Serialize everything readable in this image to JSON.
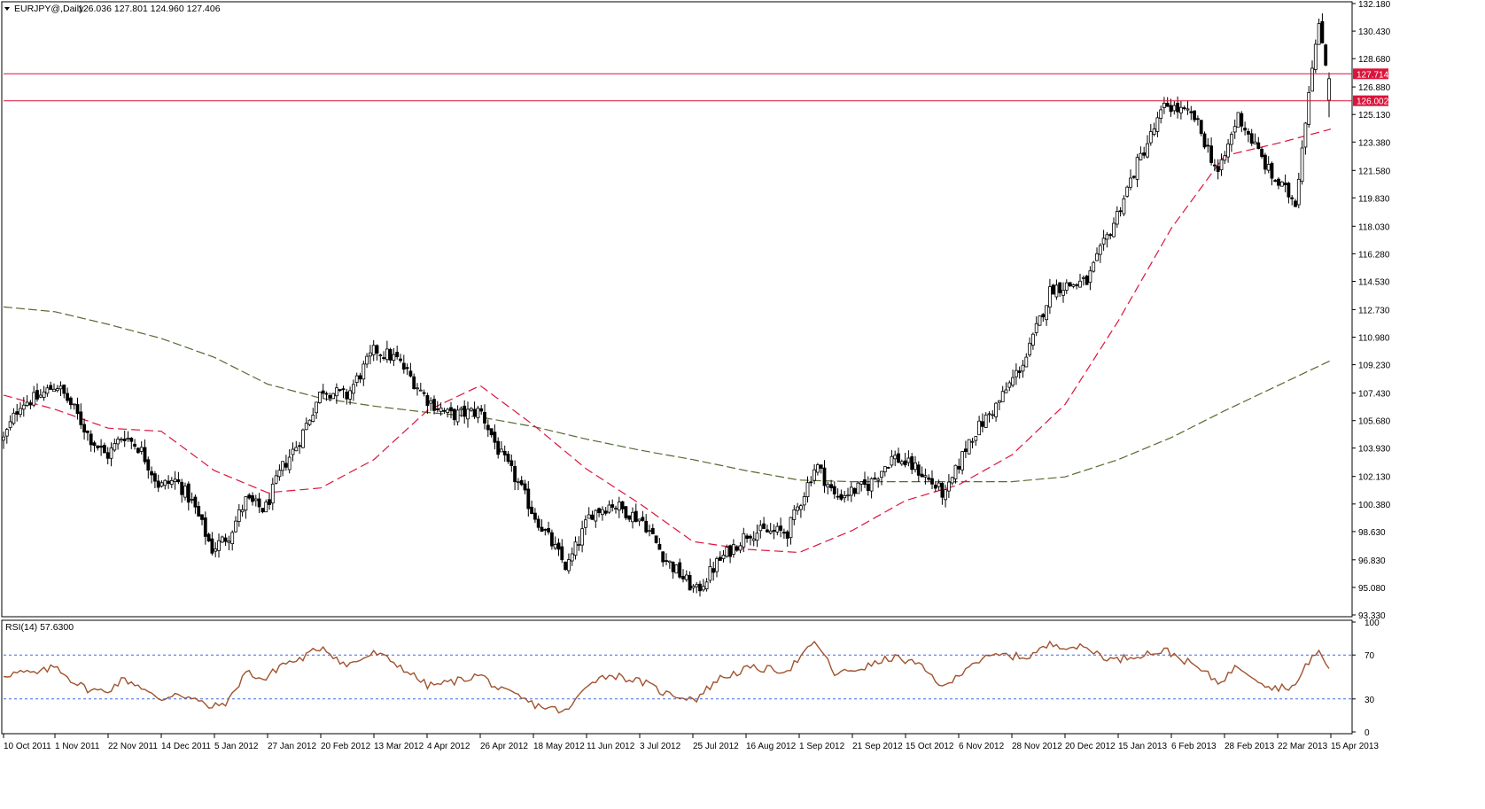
{
  "header": {
    "symbol": "EURJPY@,Daily",
    "ohlc": "126.036 127.801 124.960 127.406"
  },
  "rsi_header": "RSI(14) 57.6300",
  "colors": {
    "up_candle": "#ffffff",
    "down_candle": "#000000",
    "candle_outline": "#000000",
    "ma50": "#dc143c",
    "ma200": "#556b2f",
    "resistance_line": "#dc143c",
    "rsi_line": "#a0522d",
    "rsi_levels": "#4169e1",
    "tag_fill": "#dc143c"
  },
  "chart_data": [
    {
      "type": "candlestick",
      "symbol": "EURJPY",
      "timeframe": "Daily",
      "title": "EURJPY@,Daily",
      "last_ohlc": {
        "open": 126.036,
        "high": 127.801,
        "low": 124.96,
        "close": 127.406
      },
      "ylim": [
        93.33,
        132.18
      ],
      "y_ticks": [
        "93.330",
        "95.080",
        "96.830",
        "98.630",
        "100.380",
        "102.130",
        "103.930",
        "105.680",
        "107.430",
        "109.230",
        "110.980",
        "112.730",
        "114.530",
        "116.280",
        "118.030",
        "119.830",
        "121.580",
        "123.380",
        "125.130",
        "126.880",
        "128.680",
        "130.430",
        "132.180"
      ],
      "x_ticks": [
        "10 Oct 2011",
        "1 Nov 2011",
        "22 Nov 2011",
        "14 Dec 2011",
        "5 Jan 2012",
        "27 Jan 2012",
        "20 Feb 2012",
        "13 Mar 2012",
        "4 Apr 2012",
        "26 Apr 2012",
        "18 May 2012",
        "11 Jun 2012",
        "3 Jul 2012",
        "25 Jul 2012",
        "16 Aug 2012",
        "1 Sep 2012",
        "21 Sep 2012",
        "15 Oct 2012",
        "6 Nov 2012",
        "28 Nov 2012",
        "20 Dec 2012",
        "15 Jan 2013",
        "6 Feb 2013",
        "28 Feb 2013",
        "22 Mar 2013",
        "15 Apr 2013"
      ],
      "close_path": [
        {
          "date": "10 Oct 2011",
          "close": 104.5
        },
        {
          "date": "17 Oct 2011",
          "close": 106.8
        },
        {
          "date": "24 Oct 2011",
          "close": 107.1
        },
        {
          "date": "1 Nov 2011",
          "close": 108.0
        },
        {
          "date": "8 Nov 2011",
          "close": 106.5
        },
        {
          "date": "15 Nov 2011",
          "close": 104.6
        },
        {
          "date": "22 Nov 2011",
          "close": 103.4
        },
        {
          "date": "29 Nov 2011",
          "close": 104.8
        },
        {
          "date": "6 Dec 2011",
          "close": 103.9
        },
        {
          "date": "14 Dec 2011",
          "close": 101.5
        },
        {
          "date": "21 Dec 2011",
          "close": 101.9
        },
        {
          "date": "28 Dec 2011",
          "close": 100.4
        },
        {
          "date": "5 Jan 2012",
          "close": 97.5
        },
        {
          "date": "12 Jan 2012",
          "close": 98.4
        },
        {
          "date": "19 Jan 2012",
          "close": 100.6
        },
        {
          "date": "27 Jan 2012",
          "close": 100.0
        },
        {
          "date": "3 Feb 2012",
          "close": 102.6
        },
        {
          "date": "10 Feb 2012",
          "close": 104.3
        },
        {
          "date": "20 Feb 2012",
          "close": 107.7
        },
        {
          "date": "1 Mar 2012",
          "close": 107.2
        },
        {
          "date": "13 Mar 2012",
          "close": 110.2
        },
        {
          "date": "22 Mar 2012",
          "close": 109.6
        },
        {
          "date": "4 Apr 2012",
          "close": 107.0
        },
        {
          "date": "13 Apr 2012",
          "close": 106.0
        },
        {
          "date": "26 Apr 2012",
          "close": 106.3
        },
        {
          "date": "4 May 2012",
          "close": 103.6
        },
        {
          "date": "11 May 2012",
          "close": 101.9
        },
        {
          "date": "18 May 2012",
          "close": 99.8
        },
        {
          "date": "1 Jun 2012",
          "close": 96.3
        },
        {
          "date": "11 Jun 2012",
          "close": 99.8
        },
        {
          "date": "20 Jun 2012",
          "close": 100.4
        },
        {
          "date": "3 Jul 2012",
          "close": 99.3
        },
        {
          "date": "12 Jul 2012",
          "close": 96.9
        },
        {
          "date": "25 Jul 2012",
          "close": 94.8
        },
        {
          "date": "3 Aug 2012",
          "close": 96.7
        },
        {
          "date": "16 Aug 2012",
          "close": 98.6
        },
        {
          "date": "1 Sep 2012",
          "close": 98.6
        },
        {
          "date": "13 Sep 2012",
          "close": 102.9
        },
        {
          "date": "21 Sep 2012",
          "close": 100.8
        },
        {
          "date": "5 Oct 2012",
          "close": 101.6
        },
        {
          "date": "15 Oct 2012",
          "close": 103.4
        },
        {
          "date": "25 Oct 2012",
          "close": 102.6
        },
        {
          "date": "6 Nov 2012",
          "close": 100.9
        },
        {
          "date": "16 Nov 2012",
          "close": 104.5
        },
        {
          "date": "28 Nov 2012",
          "close": 106.8
        },
        {
          "date": "10 Dec 2012",
          "close": 109.8
        },
        {
          "date": "20 Dec 2012",
          "close": 114.1
        },
        {
          "date": "4 Jan 2013",
          "close": 114.5
        },
        {
          "date": "15 Jan 2013",
          "close": 118.2
        },
        {
          "date": "25 Jan 2013",
          "close": 122.0
        },
        {
          "date": "6 Feb 2013",
          "close": 125.8
        },
        {
          "date": "18 Feb 2013",
          "close": 124.9
        },
        {
          "date": "28 Feb 2013",
          "close": 121.3
        },
        {
          "date": "8 Mar 2013",
          "close": 125.1
        },
        {
          "date": "22 Mar 2013",
          "close": 121.2
        },
        {
          "date": "1 Apr 2013",
          "close": 119.6
        },
        {
          "date": "8 Apr 2013",
          "close": 128.5
        },
        {
          "date": "11 Apr 2013",
          "close": 130.7
        },
        {
          "date": "15 Apr 2013",
          "close": 127.406
        }
      ],
      "overlays": [
        {
          "kind": "moving-average-50",
          "values_by_date": [
            {
              "date": "10 Oct 2011",
              "value": 107.3
            },
            {
              "date": "1 Nov 2011",
              "value": 106.4
            },
            {
              "date": "22 Nov 2011",
              "value": 105.2
            },
            {
              "date": "14 Dec 2011",
              "value": 105.0
            },
            {
              "date": "5 Jan 2012",
              "value": 102.5
            },
            {
              "date": "27 Jan 2012",
              "value": 101.1
            },
            {
              "date": "20 Feb 2012",
              "value": 101.4
            },
            {
              "date": "13 Mar 2012",
              "value": 103.2
            },
            {
              "date": "4 Apr 2012",
              "value": 106.3
            },
            {
              "date": "26 Apr 2012",
              "value": 107.9
            },
            {
              "date": "18 May 2012",
              "value": 105.4
            },
            {
              "date": "11 Jun 2012",
              "value": 102.6
            },
            {
              "date": "3 Jul 2012",
              "value": 100.4
            },
            {
              "date": "25 Jul 2012",
              "value": 98.0
            },
            {
              "date": "16 Aug 2012",
              "value": 97.5
            },
            {
              "date": "1 Sep 2012",
              "value": 97.3
            },
            {
              "date": "21 Sep 2012",
              "value": 98.7
            },
            {
              "date": "15 Oct 2012",
              "value": 100.6
            },
            {
              "date": "6 Nov 2012",
              "value": 101.6
            },
            {
              "date": "28 Nov 2012",
              "value": 103.5
            },
            {
              "date": "20 Dec 2012",
              "value": 106.7
            },
            {
              "date": "15 Jan 2013",
              "value": 112.0
            },
            {
              "date": "6 Feb 2013",
              "value": 117.9
            },
            {
              "date": "28 Feb 2013",
              "value": 122.5
            },
            {
              "date": "22 Mar 2013",
              "value": 123.3
            },
            {
              "date": "15 Apr 2013",
              "value": 124.2
            }
          ]
        },
        {
          "kind": "moving-average-200",
          "values_by_date": [
            {
              "date": "10 Oct 2011",
              "value": 112.9
            },
            {
              "date": "1 Nov 2011",
              "value": 112.6
            },
            {
              "date": "22 Nov 2011",
              "value": 111.8
            },
            {
              "date": "14 Dec 2011",
              "value": 110.9
            },
            {
              "date": "5 Jan 2012",
              "value": 109.7
            },
            {
              "date": "27 Jan 2012",
              "value": 108.0
            },
            {
              "date": "20 Feb 2012",
              "value": 107.1
            },
            {
              "date": "13 Mar 2012",
              "value": 106.6
            },
            {
              "date": "4 Apr 2012",
              "value": 106.2
            },
            {
              "date": "26 Apr 2012",
              "value": 105.9
            },
            {
              "date": "18 May 2012",
              "value": 105.3
            },
            {
              "date": "11 Jun 2012",
              "value": 104.5
            },
            {
              "date": "3 Jul 2012",
              "value": 103.8
            },
            {
              "date": "25 Jul 2012",
              "value": 103.2
            },
            {
              "date": "16 Aug 2012",
              "value": 102.5
            },
            {
              "date": "1 Sep 2012",
              "value": 101.9
            },
            {
              "date": "21 Sep 2012",
              "value": 101.8
            },
            {
              "date": "15 Oct 2012",
              "value": 101.8
            },
            {
              "date": "6 Nov 2012",
              "value": 101.8
            },
            {
              "date": "28 Nov 2012",
              "value": 101.8
            },
            {
              "date": "20 Dec 2012",
              "value": 102.1
            },
            {
              "date": "15 Jan 2013",
              "value": 103.2
            },
            {
              "date": "6 Feb 2013",
              "value": 104.6
            },
            {
              "date": "28 Feb 2013",
              "value": 106.3
            },
            {
              "date": "22 Mar 2013",
              "value": 107.9
            },
            {
              "date": "15 Apr 2013",
              "value": 109.5
            }
          ]
        }
      ],
      "horizontal_levels": [
        {
          "value": 127.714,
          "label": "127.714"
        },
        {
          "value": 126.002,
          "label": "126.002"
        }
      ],
      "grid": false
    },
    {
      "type": "line",
      "title": "RSI(14) 57.6300",
      "ylim": [
        0,
        100
      ],
      "y_ticks": [
        "100",
        "70",
        "30",
        "0"
      ],
      "levels": [
        70,
        30
      ],
      "series": [
        {
          "values": [
            {
              "date": "10 Oct 2011",
              "value": 52
            },
            {
              "date": "17 Oct 2011",
              "value": 54
            },
            {
              "date": "24 Oct 2011",
              "value": 53
            },
            {
              "date": "1 Nov 2011",
              "value": 60
            },
            {
              "date": "8 Nov 2011",
              "value": 46
            },
            {
              "date": "15 Nov 2011",
              "value": 38
            },
            {
              "date": "22 Nov 2011",
              "value": 37
            },
            {
              "date": "29 Nov 2011",
              "value": 48
            },
            {
              "date": "6 Dec 2011",
              "value": 42
            },
            {
              "date": "14 Dec 2011",
              "value": 28
            },
            {
              "date": "21 Dec 2011",
              "value": 36
            },
            {
              "date": "28 Dec 2011",
              "value": 30
            },
            {
              "date": "5 Jan 2012",
              "value": 22
            },
            {
              "date": "12 Jan 2012",
              "value": 28
            },
            {
              "date": "19 Jan 2012",
              "value": 55
            },
            {
              "date": "27 Jan 2012",
              "value": 47
            },
            {
              "date": "3 Feb 2012",
              "value": 62
            },
            {
              "date": "10 Feb 2012",
              "value": 65
            },
            {
              "date": "20 Feb 2012",
              "value": 78
            },
            {
              "date": "1 Mar 2012",
              "value": 60
            },
            {
              "date": "13 Mar 2012",
              "value": 72
            },
            {
              "date": "22 Mar 2012",
              "value": 62
            },
            {
              "date": "4 Apr 2012",
              "value": 42
            },
            {
              "date": "13 Apr 2012",
              "value": 45
            },
            {
              "date": "26 Apr 2012",
              "value": 52
            },
            {
              "date": "4 May 2012",
              "value": 38
            },
            {
              "date": "11 May 2012",
              "value": 33
            },
            {
              "date": "18 May 2012",
              "value": 25
            },
            {
              "date": "1 Jun 2012",
              "value": 18
            },
            {
              "date": "11 Jun 2012",
              "value": 47
            },
            {
              "date": "20 Jun 2012",
              "value": 52
            },
            {
              "date": "3 Jul 2012",
              "value": 45
            },
            {
              "date": "12 Jul 2012",
              "value": 35
            },
            {
              "date": "25 Jul 2012",
              "value": 30
            },
            {
              "date": "3 Aug 2012",
              "value": 48
            },
            {
              "date": "16 Aug 2012",
              "value": 58
            },
            {
              "date": "1 Sep 2012",
              "value": 56
            },
            {
              "date": "13 Sep 2012",
              "value": 82
            },
            {
              "date": "21 Sep 2012",
              "value": 52
            },
            {
              "date": "5 Oct 2012",
              "value": 60
            },
            {
              "date": "15 Oct 2012",
              "value": 68
            },
            {
              "date": "25 Oct 2012",
              "value": 62
            },
            {
              "date": "6 Nov 2012",
              "value": 40
            },
            {
              "date": "16 Nov 2012",
              "value": 62
            },
            {
              "date": "28 Nov 2012",
              "value": 70
            },
            {
              "date": "10 Dec 2012",
              "value": 68
            },
            {
              "date": "20 Dec 2012",
              "value": 80
            },
            {
              "date": "4 Jan 2013",
              "value": 76
            },
            {
              "date": "15 Jan 2013",
              "value": 65
            },
            {
              "date": "25 Jan 2013",
              "value": 70
            },
            {
              "date": "6 Feb 2013",
              "value": 74
            },
            {
              "date": "18 Feb 2013",
              "value": 60
            },
            {
              "date": "28 Feb 2013",
              "value": 45
            },
            {
              "date": "8 Mar 2013",
              "value": 60
            },
            {
              "date": "22 Mar 2013",
              "value": 40
            },
            {
              "date": "1 Apr 2013",
              "value": 42
            },
            {
              "date": "8 Apr 2013",
              "value": 70
            },
            {
              "date": "11 Apr 2013",
              "value": 72
            },
            {
              "date": "15 Apr 2013",
              "value": 57.63
            }
          ]
        }
      ]
    }
  ]
}
